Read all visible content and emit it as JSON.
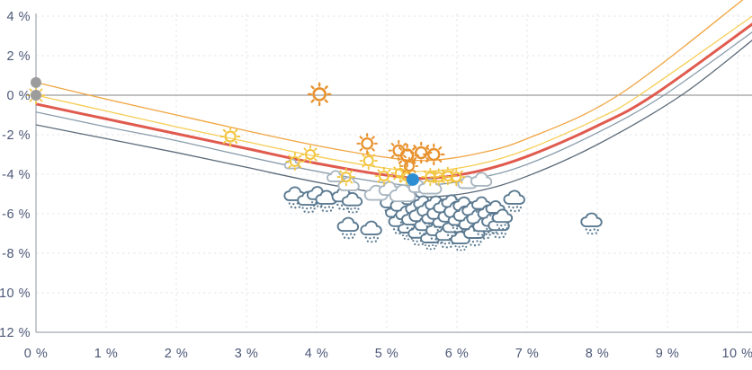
{
  "chart_data": {
    "type": "line+scatter",
    "title": "",
    "x_axis": {
      "range": [
        0,
        10.2
      ],
      "tick_values": [
        0,
        1,
        2,
        3,
        4,
        5,
        6,
        7,
        8,
        9,
        10
      ],
      "tick_labels": [
        "0 %",
        "1 %",
        "2 %",
        "3 %",
        "4 %",
        "5 %",
        "6 %",
        "7 %",
        "8 %",
        "9 %",
        "10 %"
      ]
    },
    "y_axis": {
      "range": [
        -12,
        4.4
      ],
      "tick_values": [
        4,
        2,
        0,
        -2,
        -4,
        -6,
        -8,
        -10,
        -12
      ],
      "tick_labels": [
        "4 %",
        "2 %",
        "0 %",
        "-2 %",
        "-4 %",
        "-6 %",
        "-8 %",
        "-10 %",
        "-12 %"
      ],
      "zero_line_value": 0
    },
    "grid": {
      "dashed_color": "#e3e6ea",
      "axis_color": "#a2a7ae",
      "zero_line_color": "#9c9c9c"
    },
    "series": [
      {
        "name": "percentile-low-dark",
        "color": "#5c6b7a",
        "width": 1.3,
        "points": [
          [
            0,
            -1.5
          ],
          [
            1,
            -2.2
          ],
          [
            2,
            -2.9
          ],
          [
            3,
            -3.65
          ],
          [
            4,
            -4.4
          ],
          [
            5,
            -5.0
          ],
          [
            5.6,
            -5.15
          ],
          [
            6.3,
            -4.85
          ],
          [
            7,
            -4.1
          ],
          [
            8,
            -2.5
          ],
          [
            9.2,
            0
          ],
          [
            10.25,
            2.9
          ]
        ]
      },
      {
        "name": "percentile-low-gray",
        "color": "#8a9cab",
        "width": 1.3,
        "points": [
          [
            0,
            -0.85
          ],
          [
            1,
            -1.6
          ],
          [
            2,
            -2.3
          ],
          [
            3,
            -3.1
          ],
          [
            4,
            -3.85
          ],
          [
            5,
            -4.45
          ],
          [
            5.6,
            -4.55
          ],
          [
            6.3,
            -4.2
          ],
          [
            7,
            -3.5
          ],
          [
            8,
            -1.9
          ],
          [
            8.95,
            0
          ],
          [
            10.25,
            3.3
          ]
        ]
      },
      {
        "name": "median-red",
        "color": "#e05a4e",
        "width": 3,
        "points": [
          [
            0,
            -0.45
          ],
          [
            1,
            -1.2
          ],
          [
            2,
            -1.95
          ],
          [
            3,
            -2.7
          ],
          [
            4,
            -3.45
          ],
          [
            5,
            -4.05
          ],
          [
            5.6,
            -4.2
          ],
          [
            6.3,
            -3.85
          ],
          [
            7,
            -3.1
          ],
          [
            8,
            -1.55
          ],
          [
            8.8,
            0
          ],
          [
            10.25,
            3.7
          ]
        ]
      },
      {
        "name": "percentile-high-yellow",
        "color": "#f6cd55",
        "width": 1.3,
        "points": [
          [
            0,
            0
          ],
          [
            1,
            -0.8
          ],
          [
            2,
            -1.6
          ],
          [
            3,
            -2.35
          ],
          [
            4,
            -3.1
          ],
          [
            5,
            -3.7
          ],
          [
            5.6,
            -3.85
          ],
          [
            6.3,
            -3.5
          ],
          [
            7,
            -2.75
          ],
          [
            8,
            -1.2
          ],
          [
            8.6,
            0
          ],
          [
            10.25,
            4.1
          ]
        ]
      },
      {
        "name": "percentile-high-orange",
        "color": "#f0a541",
        "width": 1.3,
        "points": [
          [
            0,
            0.65
          ],
          [
            1,
            -0.2
          ],
          [
            2,
            -1.0
          ],
          [
            3,
            -1.8
          ],
          [
            4,
            -2.55
          ],
          [
            5,
            -3.15
          ],
          [
            5.6,
            -3.3
          ],
          [
            6.3,
            -2.95
          ],
          [
            7,
            -2.2
          ],
          [
            8.3,
            0
          ],
          [
            10.1,
            4.9
          ]
        ]
      }
    ],
    "scatter": [
      {
        "name": "rainy-outcomes",
        "icon": "rain-cloud-icon",
        "stroke": "#5b7a91",
        "fill": "#ffffff",
        "points": [
          [
            3.69,
            -5.09,
            1
          ],
          [
            3.88,
            -5.32,
            1
          ],
          [
            4.01,
            -5.05,
            0.95
          ],
          [
            4.14,
            -5.27,
            1
          ],
          [
            4.38,
            -5.14,
            1.05
          ],
          [
            4.51,
            -5.36,
            0.95
          ],
          [
            4.45,
            -6.64,
            1
          ],
          [
            4.78,
            -6.82,
            1
          ],
          [
            5.06,
            -5.45,
            1
          ],
          [
            5.12,
            -5.95,
            0.9
          ],
          [
            5.18,
            -6.4,
            1
          ],
          [
            5.22,
            -5.6,
            1.1
          ],
          [
            5.28,
            -6.05,
            1
          ],
          [
            5.3,
            -6.75,
            0.9
          ],
          [
            5.35,
            -5.3,
            0.95
          ],
          [
            5.38,
            -6.3,
            1.1
          ],
          [
            5.42,
            -5.75,
            1
          ],
          [
            5.45,
            -7.0,
            0.95
          ],
          [
            5.5,
            -6.1,
            1.2
          ],
          [
            5.52,
            -5.5,
            0.9
          ],
          [
            5.55,
            -6.6,
            1
          ],
          [
            5.6,
            -5.85,
            1.1
          ],
          [
            5.62,
            -7.25,
            0.9
          ],
          [
            5.65,
            -6.25,
            1
          ],
          [
            5.7,
            -5.55,
            1
          ],
          [
            5.72,
            -6.85,
            1.05
          ],
          [
            5.75,
            -6.0,
            1.15
          ],
          [
            5.8,
            -6.45,
            0.95
          ],
          [
            5.82,
            -5.7,
            1
          ],
          [
            5.85,
            -7.1,
            1
          ],
          [
            5.9,
            -6.15,
            1.1
          ],
          [
            5.92,
            -5.45,
            0.9
          ],
          [
            5.95,
            -6.7,
            1
          ],
          [
            6.0,
            -5.9,
            1.2
          ],
          [
            6.02,
            -6.35,
            0.95
          ],
          [
            6.05,
            -7.3,
            0.9
          ],
          [
            6.1,
            -5.6,
            1
          ],
          [
            6.12,
            -6.1,
            1.1
          ],
          [
            6.18,
            -6.55,
            1
          ],
          [
            6.22,
            -5.85,
            0.95
          ],
          [
            6.25,
            -7.0,
            1
          ],
          [
            6.3,
            -6.25,
            1.05
          ],
          [
            6.35,
            -5.55,
            0.9
          ],
          [
            6.38,
            -6.65,
            1
          ],
          [
            6.45,
            -6.0,
            1
          ],
          [
            6.5,
            -6.4,
            0.95
          ],
          [
            6.55,
            -5.75,
            0.9
          ],
          [
            6.6,
            -6.6,
            1
          ],
          [
            6.65,
            -6.2,
            0.95
          ],
          [
            6.82,
            -5.27,
            1
          ],
          [
            7.92,
            -6.41,
            1
          ]
        ]
      },
      {
        "name": "cloudy-outcomes",
        "icon": "cloud-icon",
        "stroke": "#aab7c1",
        "fill": "#ffffff",
        "points": [
          [
            3.65,
            -3.55,
            0.7
          ],
          [
            4.27,
            -4.18,
            0.8
          ],
          [
            4.46,
            -4.59,
            1
          ],
          [
            4.85,
            -5.05,
            1.1
          ],
          [
            5.04,
            -4.82,
            1
          ],
          [
            5.23,
            -5.09,
            1.25
          ],
          [
            5.45,
            -4.7,
            0.9
          ],
          [
            5.62,
            -4.73,
            1.1
          ],
          [
            6.15,
            -4.5,
            0.9
          ],
          [
            6.35,
            -4.36,
            1
          ]
        ]
      },
      {
        "name": "sunny-outcomes",
        "icon": "sun-icon",
        "stroke": "#f2c43d",
        "points": [
          [
            0,
            0,
            1
          ],
          [
            2.77,
            -2.09,
            1.1
          ],
          [
            3.69,
            -3.36,
            1
          ],
          [
            3.91,
            -3.0,
            1
          ],
          [
            4.42,
            -4.14,
            1
          ],
          [
            4.74,
            -3.32,
            1
          ],
          [
            4.96,
            -4.09,
            1
          ],
          [
            5.19,
            -3.95,
            1
          ],
          [
            5.28,
            -4.09,
            1
          ],
          [
            5.62,
            -4.14,
            1
          ],
          [
            5.74,
            -4.14,
            0.95
          ],
          [
            5.87,
            -4.09,
            1
          ],
          [
            5.99,
            -4.14,
            1
          ]
        ]
      },
      {
        "name": "very-sunny-outcomes",
        "icon": "sun-icon",
        "stroke": "#e8922e",
        "points": [
          [
            4.04,
            0.05,
            1.3
          ],
          [
            4.72,
            -2.45,
            1.15
          ],
          [
            5.17,
            -2.8,
            1.15
          ],
          [
            5.29,
            -3.05,
            1.3
          ],
          [
            5.49,
            -2.91,
            1.2
          ],
          [
            5.67,
            -3.0,
            1.2
          ],
          [
            5.32,
            -3.59,
            1
          ]
        ]
      },
      {
        "name": "start-markers",
        "icon": "dot-icon",
        "fill": "#9c9c9c",
        "radius": 6,
        "points": [
          [
            0,
            0.64,
            1
          ],
          [
            0,
            0,
            1
          ]
        ]
      },
      {
        "name": "selected-outcome",
        "icon": "dot-icon",
        "fill": "#2d8ed3",
        "radius": 7,
        "interactable": true,
        "points": [
          [
            5.37,
            -4.27,
            1
          ]
        ]
      }
    ]
  }
}
